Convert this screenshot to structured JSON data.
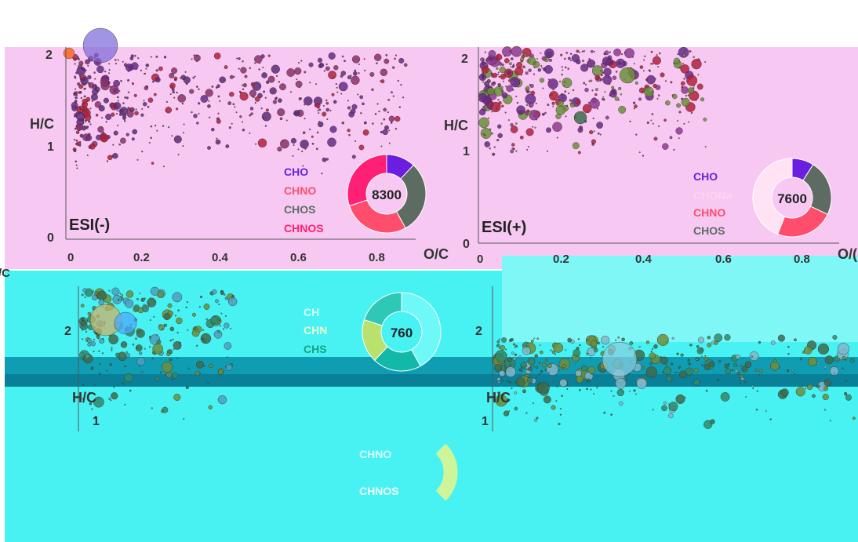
{
  "colors": {
    "pink_band": "#f7c9f2",
    "cyan_band": "#49f2f2",
    "cyan_light": "#74f6f6",
    "teal_stripe": "#0f9db4",
    "teal_dark": "#0a7f98",
    "CHO": "#6a1fe0",
    "CHNO": "#ff4d6d",
    "CHOS": "#5d6b62",
    "CHNOS": "#ff1f73",
    "CHONa": "#ffe3f5",
    "CH": "#6ff8f8",
    "CHN": "#b8e26c",
    "CHS": "#19c49a",
    "purple_dot": "#6a2a8a",
    "red_dot": "#b3203a",
    "olive_dot": "#6b8f3a",
    "green_dot": "#3c6b4c"
  },
  "chart_data": [
    {
      "type": "scatter",
      "panel": "top-left",
      "label": "ESI(-)",
      "xlabel": "O/C",
      "ylabel": "H/C",
      "x_ticks": [
        "0",
        "0.2",
        "0.4",
        "0.6",
        "0.8"
      ],
      "y_ticks": [
        "0",
        "1",
        "2"
      ],
      "xlim": [
        0,
        0.9
      ],
      "ylim": [
        0,
        2.4
      ],
      "legend": [
        "CHO",
        "CHNO",
        "CHOS",
        "CHNOS"
      ],
      "donut": {
        "total_label": "8300",
        "slices": [
          {
            "name": "CHO",
            "value": 12
          },
          {
            "name": "CHOS",
            "value": 30
          },
          {
            "name": "CHNO",
            "value": 28
          },
          {
            "name": "CHNOS",
            "value": 30
          }
        ]
      }
    },
    {
      "type": "scatter",
      "panel": "top-right",
      "label": "ESI(+)",
      "xlabel": "O/C",
      "ylabel": "H/C",
      "x_ticks": [
        "0",
        "0.2",
        "0.4",
        "0.6",
        "0.8"
      ],
      "y_ticks": [
        "0",
        "1",
        "2"
      ],
      "xlim": [
        0,
        0.9
      ],
      "ylim": [
        0,
        2.4
      ],
      "legend": [
        "CHO",
        "CHONa",
        "CHNO",
        "CHOS"
      ],
      "donut": {
        "total_label": "7600",
        "slices": [
          {
            "name": "CHO",
            "value": 9
          },
          {
            "name": "CHOS",
            "value": 23
          },
          {
            "name": "CHNO",
            "value": 24
          },
          {
            "name": "CHONa",
            "value": 44
          }
        ]
      }
    },
    {
      "type": "scatter",
      "panel": "bottom-left",
      "label": "",
      "xlabel": "",
      "ylabel": "H/C",
      "y_ticks": [
        "1",
        "2"
      ],
      "legend": [
        "CH",
        "CHN",
        "CHS",
        "CHNO",
        "CHNOS"
      ],
      "donut": {
        "total_label": "760",
        "slices": [
          {
            "name": "CH",
            "value": 42
          },
          {
            "name": "CHS",
            "value": 20
          },
          {
            "name": "CHN",
            "value": 18
          },
          {
            "name": "CHS",
            "value": 20
          }
        ]
      }
    },
    {
      "type": "scatter",
      "panel": "bottom-right",
      "label": "",
      "xlabel": "",
      "ylabel": "H/C",
      "y_ticks": [
        "1",
        "2"
      ]
    }
  ],
  "artifacts": {
    "stray_oc": "/C",
    "cut_oc": "O/("
  }
}
